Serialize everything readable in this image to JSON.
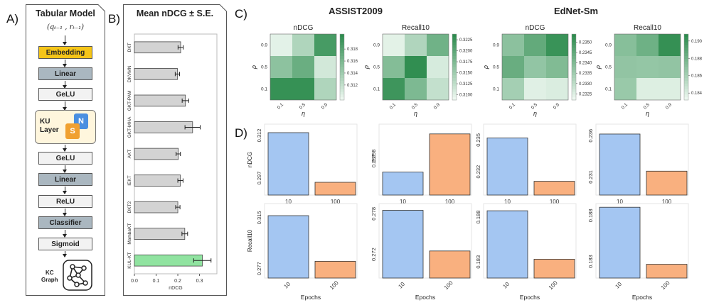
{
  "labels": {
    "a": "A)",
    "b": "B)",
    "c": "C)",
    "d": "D)"
  },
  "panelA": {
    "title": "Tabular Model",
    "input": "(q_{t-1}, r_{t-1})",
    "input_display": "(qₜ₋₁ , rₜ₋₁)",
    "blocks": [
      "Embedding",
      "Linear",
      "GeLU",
      "KU Layer",
      "GeLU",
      "Linear",
      "ReLU",
      "Classifier",
      "Sigmoid"
    ],
    "ku_label_1": "KU",
    "ku_label_2": "Layer",
    "ku_n": "N",
    "ku_s": "S",
    "kc_label_1": "KC",
    "kc_label_2": "Graph",
    "colors": {
      "embedding": "#f5c518",
      "dark": "#aab7c0",
      "light": "#f2f2f2",
      "ku_bg": "#fff6dd",
      "n": "#4a8fe0",
      "s": "#f0a030"
    }
  },
  "chart_data": [
    {
      "id": "B",
      "type": "bar",
      "orientation": "horizontal",
      "title": "Mean nDCG ± S.E.",
      "xlabel": "nDCG",
      "categories": [
        "DKT",
        "DKVMN",
        "GKT-PAM",
        "GKT-MHA",
        "AKT",
        "IEKT",
        "DKT2",
        "MambaKT",
        "KUL-KT"
      ],
      "values": [
        0.213,
        0.198,
        0.235,
        0.268,
        0.202,
        0.212,
        0.2,
        0.232,
        0.313
      ],
      "errors": [
        0.012,
        0.01,
        0.015,
        0.035,
        0.01,
        0.012,
        0.01,
        0.013,
        0.04
      ],
      "xlim": [
        0,
        0.38
      ],
      "xticks": [
        "0.0",
        "0.1",
        "0.2",
        "0.3"
      ],
      "colors": {
        "default": "#d3d3d3",
        "highlight": "#90e3a0"
      }
    },
    {
      "id": "C",
      "type": "heatmap",
      "dataset_titles": [
        "ASSIST2009",
        "EdNet-Sm"
      ],
      "xlabel": "η",
      "ylabel": "ρ",
      "xticks": [
        "0.1",
        "0.5",
        "0.9"
      ],
      "yticks": [
        "0.9",
        "0.5",
        "0.1"
      ],
      "maps": [
        {
          "title": "nDCG",
          "values": [
            [
              0.31,
              0.313,
              0.319
            ],
            [
              0.315,
              0.317,
              0.311
            ],
            [
              0.32,
              0.32,
              0.313
            ]
          ],
          "range": [
            0.3095,
            0.3205
          ],
          "ticks": [
            "0.318",
            "0.316",
            "0.314",
            "0.312"
          ]
        },
        {
          "title": "Recall10",
          "values": [
            [
              0.3095,
              0.3135,
              0.3185
            ],
            [
              0.317,
              0.3235,
              0.3105
            ],
            [
              0.3225,
              0.3175,
              0.312
            ]
          ],
          "range": [
            0.3088,
            0.3238
          ],
          "ticks": [
            "0.3225",
            "0.3200",
            "0.3175",
            "0.3150",
            "0.3125",
            "0.3100"
          ]
        },
        {
          "title": "nDCG",
          "values": [
            [
              0.2338,
              0.2345,
              0.2352
            ],
            [
              0.2344,
              0.2337,
              0.234
            ],
            [
              0.2334,
              0.2324,
              0.2325
            ]
          ],
          "range": [
            0.2322,
            0.2354
          ],
          "ticks": [
            "0.2350",
            "0.2345",
            "0.2340",
            "0.2335",
            "0.2330",
            "0.2325"
          ]
        },
        {
          "title": "Recall10",
          "values": [
            [
              0.1872,
              0.1882,
              0.1905
            ],
            [
              0.1868,
              0.1867,
              0.1868
            ],
            [
              0.1865,
              0.1838,
              0.1838
            ]
          ],
          "range": [
            0.1832,
            0.1908
          ],
          "ticks": [
            "0.190",
            "0.188",
            "0.186",
            "0.184"
          ]
        }
      ]
    },
    {
      "id": "D",
      "type": "bar",
      "xlabel": "Epochs",
      "row_labels": [
        "nDCG",
        "Recall10"
      ],
      "categories": [
        "10",
        "100"
      ],
      "colors": [
        "#a4c6f2",
        "#f9b07f"
      ],
      "panels": [
        {
          "row": 0,
          "ylim": [
            0.291,
            0.316
          ],
          "yticks": [
            "0.312",
            "0.297"
          ],
          "ytick_values": [
            0.312,
            0.297
          ],
          "values": [
            0.313,
            0.2955
          ]
        },
        {
          "row": 0,
          "ylim": [
            0.29,
            0.3045
          ],
          "yticks": [
            "0.298",
            "0.297"
          ],
          "ytick_values": [
            0.298,
            0.297
          ],
          "values": [
            0.2947,
            0.3025
          ]
        },
        {
          "row": 0,
          "ylim": [
            0.2298,
            0.2365
          ],
          "yticks": [
            "0.235",
            "0.232"
          ],
          "ytick_values": [
            0.235,
            0.232
          ],
          "values": [
            0.2352,
            0.2311
          ]
        },
        {
          "row": 0,
          "ylim": [
            0.2288,
            0.2374
          ],
          "yticks": [
            "0.236",
            "0.231"
          ],
          "ytick_values": [
            0.236,
            0.231
          ],
          "values": [
            0.2362,
            0.2317
          ]
        },
        {
          "row": 1,
          "ylim": [
            0.27,
            0.3255
          ],
          "yticks": [
            "0.315",
            "0.277"
          ],
          "ytick_values": [
            0.315,
            0.277
          ],
          "values": [
            0.3165,
            0.2825
          ]
        },
        {
          "row": 1,
          "ylim": [
            0.2685,
            0.2795
          ],
          "yticks": [
            "0.278",
            "0.272"
          ],
          "ytick_values": [
            0.278,
            0.272
          ],
          "values": [
            0.2785,
            0.2725
          ]
        },
        {
          "row": 1,
          "ylim": [
            0.1812,
            0.1895
          ],
          "yticks": [
            "0.188",
            "0.183"
          ],
          "ytick_values": [
            0.188,
            0.183
          ],
          "values": [
            0.1887,
            0.1833
          ]
        },
        {
          "row": 1,
          "ylim": [
            0.1812,
            0.1893
          ],
          "yticks": [
            "0.188",
            "0.183"
          ],
          "ytick_values": [
            0.188,
            0.183
          ],
          "values": [
            0.1889,
            0.1827
          ]
        }
      ]
    }
  ]
}
